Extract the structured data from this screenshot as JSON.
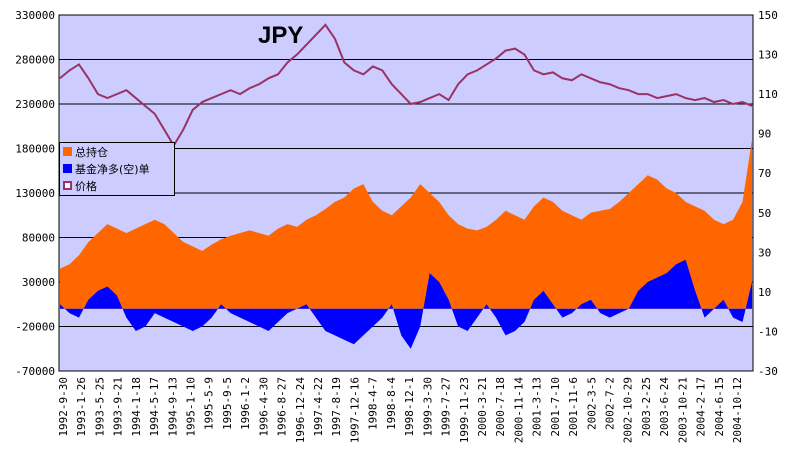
{
  "chart_data": {
    "type": "area",
    "title": "JPY",
    "xlabel": "",
    "ylabel": "",
    "ylim_left": [
      -70000,
      330000
    ],
    "ylim_right": [
      -30,
      150
    ],
    "yticks_left": [
      "330000",
      "280000",
      "230000",
      "180000",
      "130000",
      "80000",
      "30000",
      "-20000",
      "-70000"
    ],
    "yticks_right": [
      "150",
      "130",
      "110",
      "90",
      "70",
      "50",
      "30",
      "10",
      "-10",
      "-30"
    ],
    "grid": "horizontal",
    "legend_position": "left-middle",
    "colors": {
      "total": "#ff6600",
      "net": "#0000ff",
      "price": "#993366",
      "plot_bg": "#ccccff"
    },
    "xtick_labels": [
      "1992-9-30",
      "1993-1-26",
      "1993-5-25",
      "1993-9-21",
      "1994-1-18",
      "1994-5-17",
      "1994-9-13",
      "1995-1-10",
      "1995-5-9",
      "1995-9-5",
      "1996-1-2",
      "1996-4-30",
      "1996-8-27",
      "1996-12-24",
      "1997-4-22",
      "1997-8-19",
      "1997-12-16",
      "1998-4-7",
      "1998-8-4",
      "1998-12-1",
      "1999-3-30",
      "1999-7-27",
      "1999-11-23",
      "2000-3-21",
      "2000-7-18",
      "2000-11-14",
      "2001-3-13",
      "2001-7-10",
      "2001-11-6",
      "2002-3-5",
      "2002-7-2",
      "2002-10-29",
      "2003-2-25",
      "2003-6-24",
      "2003-10-21",
      "2004-2-17",
      "2004-6-15",
      "2004-10-12"
    ],
    "series": [
      {
        "name": "总持仓",
        "axis": "left",
        "values": [
          45000,
          50000,
          60000,
          75000,
          85000,
          95000,
          90000,
          85000,
          90000,
          95000,
          100000,
          95000,
          85000,
          75000,
          70000,
          65000,
          72000,
          78000,
          82000,
          85000,
          88000,
          85000,
          82000,
          90000,
          95000,
          92000,
          100000,
          105000,
          112000,
          120000,
          125000,
          135000,
          140000,
          120000,
          110000,
          105000,
          115000,
          125000,
          140000,
          130000,
          120000,
          105000,
          95000,
          90000,
          88000,
          92000,
          100000,
          110000,
          105000,
          100000,
          115000,
          125000,
          120000,
          110000,
          105000,
          100000,
          108000,
          110000,
          112000,
          120000,
          130000,
          140000,
          150000,
          145000,
          135000,
          130000,
          120000,
          115000,
          110000,
          100000,
          95000,
          100000,
          120000,
          190000
        ]
      },
      {
        "name": "基金净多(空)单",
        "axis": "left",
        "values": [
          5000,
          -5000,
          -10000,
          10000,
          20000,
          25000,
          15000,
          -10000,
          -25000,
          -20000,
          -5000,
          -10000,
          -15000,
          -20000,
          -25000,
          -20000,
          -10000,
          5000,
          -5000,
          -10000,
          -15000,
          -20000,
          -25000,
          -15000,
          -5000,
          0,
          5000,
          -10000,
          -25000,
          -30000,
          -35000,
          -40000,
          -30000,
          -20000,
          -10000,
          5000,
          -30000,
          -45000,
          -20000,
          40000,
          30000,
          10000,
          -20000,
          -25000,
          -10000,
          5000,
          -10000,
          -30000,
          -25000,
          -15000,
          10000,
          20000,
          5000,
          -10000,
          -5000,
          5000,
          10000,
          -5000,
          -10000,
          -5000,
          0,
          20000,
          30000,
          35000,
          40000,
          50000,
          55000,
          20000,
          -10000,
          0,
          10000,
          -10000,
          -15000,
          30000
        ]
      },
      {
        "name": "价格",
        "axis": "right",
        "values": [
          118,
          122,
          125,
          118,
          110,
          108,
          110,
          112,
          108,
          104,
          100,
          92,
          84,
          92,
          102,
          106,
          108,
          110,
          112,
          110,
          113,
          115,
          118,
          120,
          126,
          130,
          135,
          140,
          145,
          138,
          126,
          122,
          120,
          124,
          122,
          115,
          110,
          105,
          106,
          108,
          110,
          107,
          115,
          120,
          122,
          125,
          128,
          132,
          133,
          130,
          122,
          120,
          121,
          118,
          117,
          120,
          118,
          116,
          115,
          113,
          112,
          110,
          110,
          108,
          109,
          110,
          108,
          107,
          108,
          106,
          107,
          105,
          106,
          104
        ]
      }
    ]
  }
}
